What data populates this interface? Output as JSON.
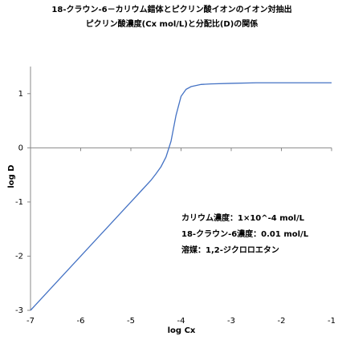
{
  "chart_data": {
    "type": "line",
    "title": "18-クラウン-6－カリウム錯体とピクリン酸イオンのイオン対抽出",
    "subtitle": "ピクリン酸濃度(Cx mol/L)と分配比(D)の関係",
    "x_label": "log Cx",
    "y_label": "log D",
    "x": [
      -7,
      -6.5,
      -6,
      -5.5,
      -5,
      -4.8,
      -4.6,
      -4.5,
      -4.4,
      -4.3,
      -4.2,
      -4.1,
      -4,
      -3.9,
      -3.8,
      -3.6,
      -3.4,
      -3,
      -2.5,
      -2,
      -1.5,
      -1
    ],
    "values": [
      -3,
      -2.5,
      -2,
      -1.5,
      -1,
      -0.8,
      -0.6,
      -0.48,
      -0.35,
      -0.17,
      0.12,
      0.6,
      0.95,
      1.08,
      1.13,
      1.17,
      1.18,
      1.19,
      1.2,
      1.2,
      1.2,
      1.2
    ],
    "color": "#4472c4",
    "xlim": [
      -7,
      -1
    ],
    "xticks": [
      -7,
      -6,
      -5,
      -4,
      -3,
      -2,
      -1
    ],
    "ylim": [
      -3,
      1.5
    ],
    "yticks": [
      -3,
      -2,
      -1,
      0,
      1
    ],
    "grid": false,
    "annotations": [
      "カリウム濃度：1×10^-4 mol/L",
      "18-クラウン-6濃度：0.01 mol/L",
      "溶媒：1,2-ジクロロエタン"
    ]
  }
}
